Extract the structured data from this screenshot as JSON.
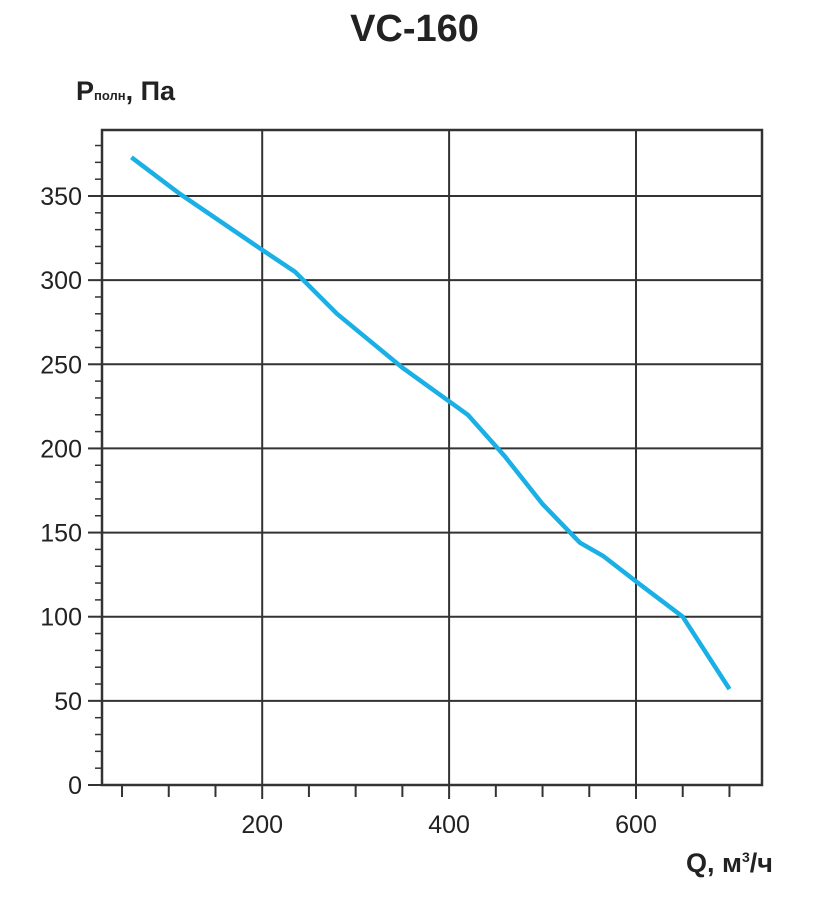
{
  "chart_data": {
    "type": "line",
    "title": "VC-160",
    "ylabel": {
      "main": "P",
      "sub": "полн",
      "suffix": ", Па"
    },
    "xlabel": {
      "main": "Q, м",
      "sup": "3",
      "suffix": "/ч"
    },
    "xlim": [
      0,
      700
    ],
    "ylim": [
      0,
      380
    ],
    "x_major_ticks": [
      200,
      400,
      600
    ],
    "x_tick_labels": [
      "200",
      "400",
      "600"
    ],
    "x_minor_ticks": [
      50,
      100,
      150,
      250,
      300,
      350,
      450,
      500,
      550,
      650,
      700
    ],
    "y_major_ticks": [
      0,
      50,
      100,
      150,
      200,
      250,
      300,
      350
    ],
    "y_tick_labels": [
      "0",
      "50",
      "100",
      "150",
      "200",
      "250",
      "300",
      "350"
    ],
    "grid": true,
    "line_color": "#1ab0e6",
    "series": [
      {
        "x": [
          60,
          110,
          200,
          235,
          280,
          350,
          400,
          420,
          460,
          500,
          540,
          565,
          600,
          650,
          700
        ],
        "y": [
          373,
          352,
          318,
          305,
          280,
          248,
          228,
          220,
          195,
          167,
          144,
          136,
          121,
          100,
          57
        ]
      }
    ]
  }
}
